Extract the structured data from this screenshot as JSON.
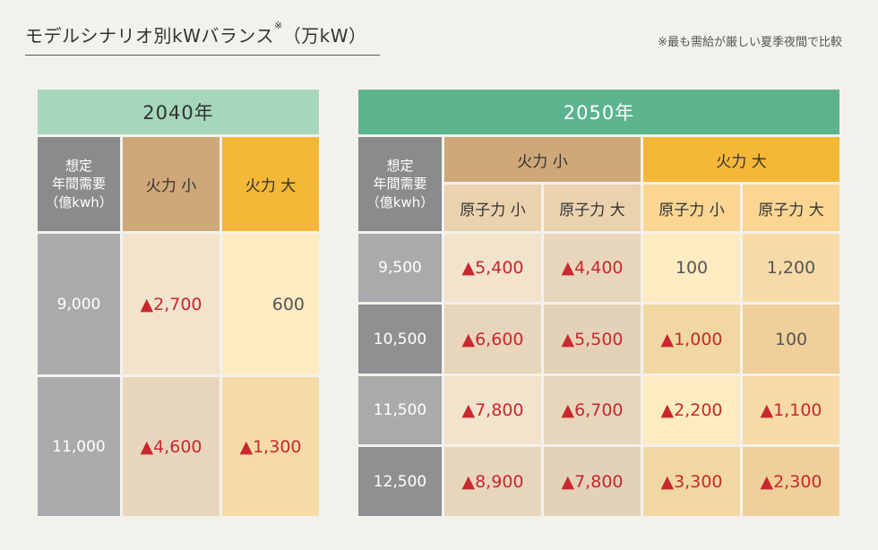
{
  "title": "モデルシナリオ別kWバランス",
  "title_mark": "※",
  "title_unit": "（万kW）",
  "note": "※最も需給が厳しい夏季夜間で比較",
  "label_lines": [
    "想定",
    "年間需要",
    "（億kwh）"
  ],
  "t2040": {
    "year": "2040年",
    "col_small": "火力 小",
    "col_large": "火力 大",
    "rows": [
      {
        "demand": "9,000",
        "small": "▲2,700",
        "large": "600"
      },
      {
        "demand": "11,000",
        "small": "▲4,600",
        "large": "▲1,300"
      }
    ]
  },
  "t2050": {
    "year": "2050年",
    "group_small": "火力 小",
    "group_large": "火力 大",
    "sub_small": "原子力 小",
    "sub_large": "原子力 大",
    "rows": [
      {
        "demand": "9,500",
        "v": [
          "▲5,400",
          "▲4,400",
          "100",
          "1,200"
        ]
      },
      {
        "demand": "10,500",
        "v": [
          "▲6,600",
          "▲5,500",
          "▲1,000",
          "100"
        ]
      },
      {
        "demand": "11,500",
        "v": [
          "▲7,800",
          "▲6,700",
          "▲2,200",
          "▲1,100"
        ]
      },
      {
        "demand": "12,500",
        "v": [
          "▲8,900",
          "▲7,800",
          "▲3,300",
          "▲2,300"
        ]
      }
    ]
  },
  "colors": {
    "header_2040": "#a6d6bb",
    "header_2050": "#5cb48e",
    "negative_text": "#c8282e"
  }
}
